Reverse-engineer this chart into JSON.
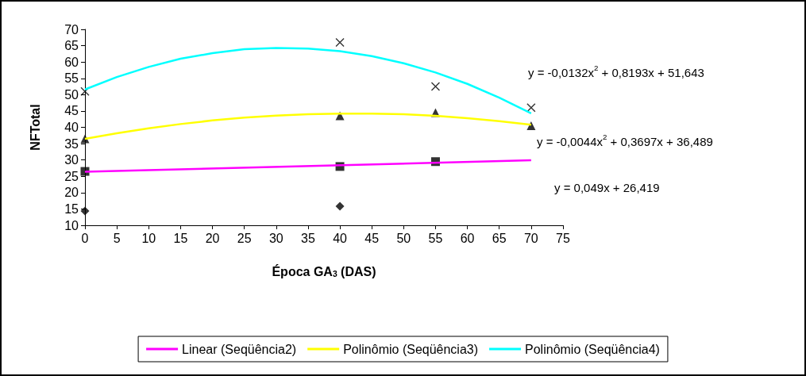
{
  "chart_data": {
    "type": "scatter",
    "xlabel": "Época GA$_{3}$ (DAS)",
    "ylabel": "NFTotal",
    "xlim": [
      0,
      75
    ],
    "xticks": [
      0,
      5,
      10,
      15,
      20,
      25,
      30,
      35,
      40,
      45,
      50,
      55,
      60,
      65,
      70,
      75
    ],
    "ylim": [
      10,
      70
    ],
    "yticks": [
      10,
      15,
      20,
      25,
      30,
      35,
      40,
      45,
      50,
      55,
      60,
      65,
      70
    ],
    "grid": false,
    "legend": "bottom",
    "series": [
      {
        "marker": "diamond",
        "color": "#000000",
        "x": [
          0,
          40
        ],
        "values": [
          14.4,
          15.8
        ]
      },
      {
        "marker": "square",
        "color": "#000000",
        "x": [
          0,
          40,
          55
        ],
        "values": [
          26.5,
          28,
          29.5
        ]
      },
      {
        "marker": "triangle",
        "color": "#000000",
        "x": [
          0,
          40,
          55,
          70
        ],
        "values": [
          36.5,
          43.5,
          44.5,
          40.5
        ]
      },
      {
        "marker": "cross",
        "color": "#000000",
        "x": [
          0,
          40,
          55,
          70
        ],
        "values": [
          51,
          66,
          52.5,
          46
        ]
      },
      {
        "type": "line",
        "marker": "none",
        "name": "Linear (Seqüência2)",
        "color": "#ff00ff",
        "x": [
          0,
          70
        ],
        "values": [
          26.4,
          29.9
        ]
      },
      {
        "type": "line",
        "marker": "none",
        "name": "Polinômio (Seqüência3)",
        "color": "#ffff00",
        "x": [
          0,
          5,
          10,
          15,
          20,
          25,
          30,
          35,
          40,
          45,
          50,
          55,
          60,
          65,
          70
        ],
        "values": [
          36.5,
          38.2,
          39.7,
          41.0,
          42.1,
          43.0,
          43.6,
          44.0,
          44.2,
          44.2,
          44.0,
          43.5,
          42.8,
          41.9,
          40.8
        ]
      },
      {
        "type": "line",
        "marker": "none",
        "name": "Polinômio (Seqüência4)",
        "color": "#00ffff",
        "x": [
          0,
          5,
          10,
          15,
          20,
          25,
          30,
          35,
          40,
          45,
          50,
          55,
          60,
          65,
          70
        ],
        "values": [
          51.6,
          55.4,
          58.5,
          61.0,
          62.7,
          63.9,
          64.3,
          64.1,
          63.3,
          61.8,
          59.6,
          56.8,
          53.3,
          49.1,
          44.3
        ]
      }
    ],
    "annotations": [
      "y = -0,0132x$^{2}$ + 0,8193x + 51,643",
      "y = -0,0044x$^{2}$ + 0,3697x + 36,489",
      "y = 0,049x + 26,419"
    ]
  }
}
